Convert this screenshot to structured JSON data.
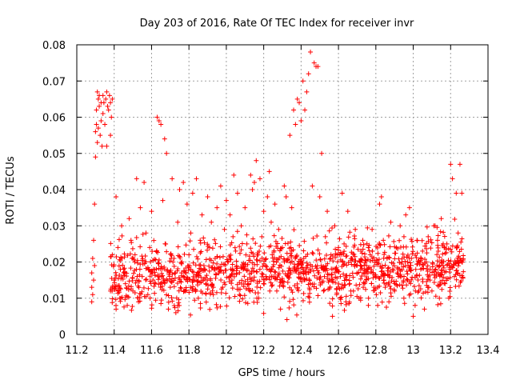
{
  "chart_data": {
    "type": "scatter",
    "title": "Day 203 of 2016, Rate Of TEC Index for receiver invr",
    "xlabel": "GPS time / hours",
    "ylabel": "ROTI / TECUs",
    "xlim": [
      11.2,
      13.4
    ],
    "ylim": [
      0,
      0.08
    ],
    "xticks": [
      11.2,
      11.4,
      11.6,
      11.8,
      12,
      12.2,
      12.4,
      12.6,
      12.8,
      13,
      13.2,
      13.4
    ],
    "xtick_labels": [
      "11.2",
      "11.4",
      "11.6",
      "11.8",
      "12",
      "12.2",
      "12.4",
      "12.6",
      "12.8",
      "13",
      "13.2",
      "13.4"
    ],
    "yticks": [
      0,
      0.01,
      0.02,
      0.03,
      0.04,
      0.05,
      0.06,
      0.07,
      0.08
    ],
    "ytick_labels": [
      "0",
      "0.01",
      "0.02",
      "0.03",
      "0.04",
      "0.05",
      "0.06",
      "0.07",
      "0.08"
    ],
    "grid": true,
    "marker": "+",
    "color": "#ff0000",
    "series": [
      {
        "name": "ROTI",
        "points": [
          [
            11.28,
            0.009
          ],
          [
            11.28,
            0.013
          ],
          [
            11.28,
            0.017
          ],
          [
            11.285,
            0.021
          ],
          [
            11.285,
            0.011
          ],
          [
            11.29,
            0.026
          ],
          [
            11.29,
            0.015
          ],
          [
            11.295,
            0.019
          ],
          [
            11.295,
            0.036
          ],
          [
            11.3,
            0.049
          ],
          [
            11.3,
            0.056
          ],
          [
            11.305,
            0.058
          ],
          [
            11.305,
            0.062
          ],
          [
            11.31,
            0.067
          ],
          [
            11.31,
            0.053
          ],
          [
            11.315,
            0.065
          ],
          [
            11.315,
            0.057
          ],
          [
            11.32,
            0.063
          ],
          [
            11.32,
            0.066
          ],
          [
            11.325,
            0.055
          ],
          [
            11.33,
            0.064
          ],
          [
            11.33,
            0.059
          ],
          [
            11.335,
            0.052
          ],
          [
            11.34,
            0.066
          ],
          [
            11.34,
            0.061
          ],
          [
            11.345,
            0.064
          ],
          [
            11.35,
            0.058
          ],
          [
            11.355,
            0.065
          ],
          [
            11.36,
            0.067
          ],
          [
            11.36,
            0.052
          ],
          [
            11.365,
            0.063
          ],
          [
            11.37,
            0.062
          ],
          [
            11.375,
            0.066
          ],
          [
            11.38,
            0.055
          ],
          [
            11.38,
            0.064
          ],
          [
            11.385,
            0.06
          ],
          [
            11.39,
            0.065
          ],
          [
            11.38,
            0.012
          ],
          [
            11.39,
            0.022
          ],
          [
            11.4,
            0.015
          ],
          [
            11.41,
            0.038
          ],
          [
            11.42,
            0.024
          ],
          [
            11.43,
            0.01
          ],
          [
            11.44,
            0.03
          ],
          [
            11.45,
            0.018
          ],
          [
            11.46,
            0.014
          ],
          [
            11.47,
            0.008
          ],
          [
            11.48,
            0.032
          ],
          [
            11.49,
            0.026
          ],
          [
            11.5,
            0.012
          ],
          [
            11.51,
            0.02
          ],
          [
            11.52,
            0.043
          ],
          [
            11.53,
            0.009
          ],
          [
            11.54,
            0.035
          ],
          [
            11.55,
            0.016
          ],
          [
            11.56,
            0.042
          ],
          [
            11.57,
            0.028
          ],
          [
            11.58,
            0.011
          ],
          [
            11.59,
            0.024
          ],
          [
            11.6,
            0.034
          ],
          [
            11.61,
            0.018
          ],
          [
            11.62,
            0.014
          ],
          [
            11.63,
            0.06
          ],
          [
            11.64,
            0.059
          ],
          [
            11.65,
            0.058
          ],
          [
            11.66,
            0.037
          ],
          [
            11.67,
            0.054
          ],
          [
            11.68,
            0.05
          ],
          [
            11.69,
            0.007
          ],
          [
            11.7,
            0.013
          ],
          [
            11.71,
            0.043
          ],
          [
            11.72,
            0.021
          ],
          [
            11.73,
            0.006
          ],
          [
            11.74,
            0.031
          ],
          [
            11.75,
            0.04
          ],
          [
            11.76,
            0.017
          ],
          [
            11.77,
            0.042
          ],
          [
            11.78,
            0.012
          ],
          [
            11.79,
            0.036
          ],
          [
            11.8,
            0.022
          ],
          [
            11.81,
            0.028
          ],
          [
            11.82,
            0.039
          ],
          [
            11.83,
            0.015
          ],
          [
            11.84,
            0.043
          ],
          [
            11.85,
            0.01
          ],
          [
            11.86,
            0.026
          ],
          [
            11.87,
            0.033
          ],
          [
            11.88,
            0.019
          ],
          [
            11.89,
            0.014
          ],
          [
            11.9,
            0.038
          ],
          [
            11.91,
            0.024
          ],
          [
            11.92,
            0.031
          ],
          [
            11.93,
            0.011
          ],
          [
            11.94,
            0.021
          ],
          [
            11.95,
            0.035
          ],
          [
            11.96,
            0.017
          ],
          [
            11.97,
            0.041
          ],
          [
            11.98,
            0.013
          ],
          [
            11.99,
            0.029
          ],
          [
            12.0,
            0.037
          ],
          [
            12.01,
            0.02
          ],
          [
            12.02,
            0.033
          ],
          [
            12.03,
            0.015
          ],
          [
            12.04,
            0.044
          ],
          [
            12.05,
            0.023
          ],
          [
            12.06,
            0.039
          ],
          [
            12.07,
            0.011
          ],
          [
            12.08,
            0.03
          ],
          [
            12.09,
            0.018
          ],
          [
            12.1,
            0.035
          ],
          [
            12.11,
            0.025
          ],
          [
            12.12,
            0.014
          ],
          [
            12.13,
            0.044
          ],
          [
            12.14,
            0.04
          ],
          [
            12.15,
            0.042
          ],
          [
            12.16,
            0.048
          ],
          [
            12.17,
            0.022
          ],
          [
            12.18,
            0.043
          ],
          [
            12.19,
            0.027
          ],
          [
            12.2,
            0.034
          ],
          [
            12.21,
            0.019
          ],
          [
            12.22,
            0.038
          ],
          [
            12.23,
            0.045
          ],
          [
            12.24,
            0.031
          ],
          [
            12.25,
            0.016
          ],
          [
            12.26,
            0.036
          ],
          [
            12.27,
            0.012
          ],
          [
            12.28,
            0.029
          ],
          [
            12.29,
            0.007
          ],
          [
            12.3,
            0.024
          ],
          [
            12.31,
            0.041
          ],
          [
            12.32,
            0.038
          ],
          [
            12.33,
            0.021
          ],
          [
            12.34,
            0.055
          ],
          [
            12.35,
            0.035
          ],
          [
            12.36,
            0.062
          ],
          [
            12.37,
            0.058
          ],
          [
            12.38,
            0.065
          ],
          [
            12.39,
            0.064
          ],
          [
            12.4,
            0.059
          ],
          [
            12.41,
            0.07
          ],
          [
            12.42,
            0.062
          ],
          [
            12.43,
            0.067
          ],
          [
            12.44,
            0.072
          ],
          [
            12.45,
            0.078
          ],
          [
            12.46,
            0.041
          ],
          [
            12.47,
            0.075
          ],
          [
            12.48,
            0.074
          ],
          [
            12.49,
            0.074
          ],
          [
            12.5,
            0.038
          ],
          [
            12.51,
            0.05
          ],
          [
            12.52,
            0.012
          ],
          [
            12.53,
            0.027
          ],
          [
            12.54,
            0.034
          ],
          [
            12.55,
            0.015
          ],
          [
            12.56,
            0.022
          ],
          [
            12.57,
            0.018
          ],
          [
            12.58,
            0.03
          ],
          [
            12.59,
            0.011
          ],
          [
            12.6,
            0.024
          ],
          [
            12.61,
            0.016
          ],
          [
            12.62,
            0.039
          ],
          [
            12.63,
            0.025
          ],
          [
            12.64,
            0.009
          ],
          [
            12.65,
            0.034
          ],
          [
            12.66,
            0.014
          ],
          [
            12.67,
            0.021
          ],
          [
            12.68,
            0.012
          ],
          [
            12.69,
            0.029
          ],
          [
            12.7,
            0.017
          ],
          [
            12.71,
            0.01
          ],
          [
            12.72,
            0.023
          ],
          [
            12.73,
            0.026
          ],
          [
            12.74,
            0.014
          ],
          [
            12.75,
            0.019
          ],
          [
            12.76,
            0.008
          ],
          [
            12.77,
            0.022
          ],
          [
            12.78,
            0.029
          ],
          [
            12.79,
            0.013
          ],
          [
            12.8,
            0.016
          ],
          [
            12.81,
            0.008
          ],
          [
            12.82,
            0.036
          ],
          [
            12.83,
            0.038
          ],
          [
            12.84,
            0.026
          ],
          [
            12.85,
            0.013
          ],
          [
            12.86,
            0.021
          ],
          [
            12.87,
            0.009
          ],
          [
            12.88,
            0.031
          ],
          [
            12.89,
            0.018
          ],
          [
            12.9,
            0.012
          ],
          [
            12.91,
            0.024
          ],
          [
            12.92,
            0.016
          ],
          [
            12.93,
            0.03
          ],
          [
            12.94,
            0.02
          ],
          [
            12.95,
            0.01
          ],
          [
            12.96,
            0.033
          ],
          [
            12.97,
            0.015
          ],
          [
            12.98,
            0.035
          ],
          [
            12.99,
            0.021
          ],
          [
            13.0,
            0.005
          ],
          [
            13.01,
            0.008
          ],
          [
            13.02,
            0.026
          ],
          [
            13.03,
            0.012
          ],
          [
            13.04,
            0.018
          ],
          [
            13.05,
            0.023
          ],
          [
            13.06,
            0.007
          ],
          [
            13.07,
            0.02
          ],
          [
            13.08,
            0.027
          ],
          [
            13.09,
            0.015
          ],
          [
            13.1,
            0.012
          ],
          [
            13.11,
            0.03
          ],
          [
            13.12,
            0.018
          ],
          [
            13.13,
            0.026
          ],
          [
            13.14,
            0.01
          ],
          [
            13.15,
            0.032
          ],
          [
            13.16,
            0.019
          ],
          [
            13.17,
            0.014
          ],
          [
            13.18,
            0.025
          ],
          [
            13.19,
            0.01
          ],
          [
            13.2,
            0.047
          ],
          [
            13.21,
            0.043
          ],
          [
            13.22,
            0.016
          ],
          [
            13.23,
            0.039
          ],
          [
            13.24,
            0.028
          ],
          [
            13.25,
            0.047
          ],
          [
            13.26,
            0.039
          ],
          [
            13.26,
            0.02
          ]
        ]
      }
    ],
    "background_band": {
      "description": "dense cloud of ROTI values centered on the trend line",
      "x_start": 11.38,
      "x_end": 13.27,
      "center_start": 0.016,
      "center_end": 0.019,
      "spread": 0.0045
    }
  }
}
